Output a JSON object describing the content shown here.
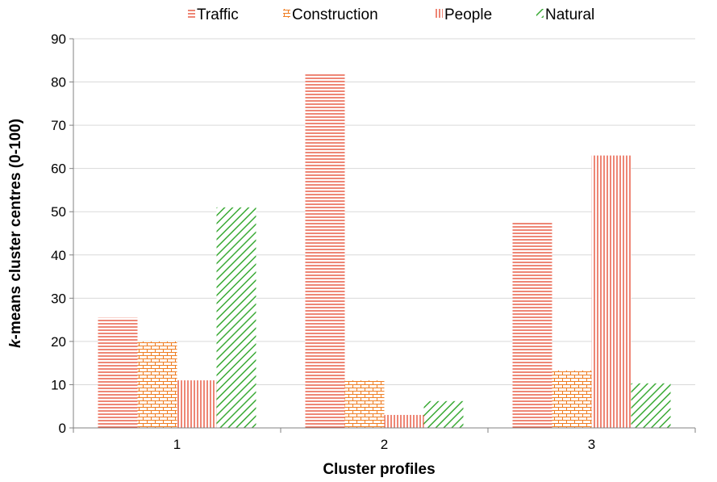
{
  "chart_data": {
    "type": "bar",
    "categories": [
      "1",
      "2",
      "3"
    ],
    "series": [
      {
        "name": "Traffic",
        "values": [
          25.5,
          82,
          47.5
        ],
        "color": "#e8533a",
        "pattern": "horizontal"
      },
      {
        "name": "Construction",
        "values": [
          20,
          11,
          13.3
        ],
        "color": "#ef7d22",
        "pattern": "brick"
      },
      {
        "name": "People",
        "values": [
          11,
          3,
          63
        ],
        "color": "#e8533a",
        "pattern": "vertical"
      },
      {
        "name": "Natural",
        "values": [
          51,
          6.2,
          10.3
        ],
        "color": "#3aaa35",
        "pattern": "diagonal"
      }
    ],
    "xlabel": "Cluster profiles",
    "ylabel_italic": "k",
    "ylabel_rest": "-means cluster centres (0-100)",
    "ylim": [
      0,
      90
    ],
    "yticks": [
      0,
      10,
      20,
      30,
      40,
      50,
      60,
      70,
      80,
      90
    ],
    "grid": true,
    "legend_position": "top"
  }
}
